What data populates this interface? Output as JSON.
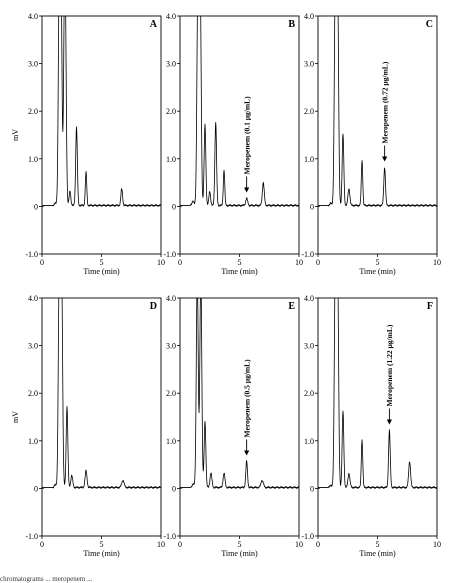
{
  "figure": {
    "caption_fragment": "chromatograms ... meropenem ..."
  },
  "chart_data": [
    {
      "type": "line",
      "panel_letter": "A",
      "xlabel": "Time (min)",
      "ylabel": "mV",
      "xlim": [
        0,
        10
      ],
      "ylim": [
        -1.0,
        4.0
      ],
      "x_ticks": [
        "0",
        "5",
        "10"
      ],
      "y_ticks": [
        "-1.0",
        "0",
        "1.0",
        "2.0",
        "3.0",
        "4.0"
      ],
      "baseline": 0.02,
      "peaks": [
        [
          1.1,
          0.05,
          0.08
        ],
        [
          1.45,
          4.5,
          0.08
        ],
        [
          1.6,
          4.5,
          0.08
        ],
        [
          1.9,
          4.5,
          0.08
        ],
        [
          2.0,
          1.7,
          0.07
        ],
        [
          2.35,
          0.3,
          0.07
        ],
        [
          2.9,
          1.65,
          0.07
        ],
        [
          3.7,
          0.7,
          0.06
        ],
        [
          6.7,
          0.35,
          0.07
        ]
      ],
      "annotation": null
    },
    {
      "type": "line",
      "panel_letter": "B",
      "xlabel": "Time (min)",
      "ylabel": "",
      "xlim": [
        0,
        10
      ],
      "ylim": [
        -1.0,
        4.0
      ],
      "x_ticks": [
        "0",
        "5",
        "10"
      ],
      "y_ticks": [
        "-1.0",
        "0",
        "1.0",
        "2.0",
        "3.0",
        "4.0"
      ],
      "baseline": 0.02,
      "peaks": [
        [
          1.1,
          0.1,
          0.08
        ],
        [
          1.5,
          4.5,
          0.08
        ],
        [
          1.7,
          4.5,
          0.08
        ],
        [
          2.1,
          1.7,
          0.07
        ],
        [
          2.5,
          0.3,
          0.07
        ],
        [
          3.0,
          1.75,
          0.07
        ],
        [
          3.7,
          0.75,
          0.06
        ],
        [
          5.6,
          0.15,
          0.08
        ],
        [
          7.0,
          0.48,
          0.08
        ]
      ],
      "annotation": {
        "label": "Meropenem (0.1 µg/mL)",
        "x": 5.6,
        "y": 0.25
      }
    },
    {
      "type": "line",
      "panel_letter": "C",
      "xlabel": "Time (min)",
      "ylabel": "",
      "xlim": [
        0,
        10
      ],
      "ylim": [
        -1.0,
        4.0
      ],
      "x_ticks": [
        "0",
        "5",
        "10"
      ],
      "y_ticks": [
        "-1.0",
        "0",
        "1.0",
        "2.0",
        "3.0",
        "4.0"
      ],
      "baseline": 0.02,
      "peaks": [
        [
          1.1,
          0.05,
          0.08
        ],
        [
          1.45,
          4.5,
          0.08
        ],
        [
          1.65,
          4.5,
          0.08
        ],
        [
          2.1,
          1.5,
          0.07
        ],
        [
          2.6,
          0.35,
          0.08
        ],
        [
          3.7,
          0.95,
          0.06
        ],
        [
          5.6,
          0.8,
          0.07
        ]
      ],
      "annotation": {
        "label": "Meropenem (0.72 µg/mL)",
        "x": 5.6,
        "y": 0.9
      }
    },
    {
      "type": "line",
      "panel_letter": "D",
      "xlabel": "Time (min)",
      "ylabel": "mV",
      "xlim": [
        0,
        10
      ],
      "ylim": [
        -1.0,
        4.0
      ],
      "x_ticks": [
        "0",
        "5",
        "10"
      ],
      "y_ticks": [
        "-1.0",
        "0",
        "1.0",
        "2.0",
        "3.0",
        "4.0"
      ],
      "baseline": 0.02,
      "peaks": [
        [
          1.1,
          0.05,
          0.08
        ],
        [
          1.45,
          4.5,
          0.08
        ],
        [
          1.65,
          4.5,
          0.08
        ],
        [
          2.1,
          1.7,
          0.07
        ],
        [
          2.5,
          0.25,
          0.08
        ],
        [
          3.7,
          0.35,
          0.08
        ],
        [
          6.8,
          0.15,
          0.1
        ]
      ],
      "annotation": null
    },
    {
      "type": "line",
      "panel_letter": "E",
      "xlabel": "Time (min)",
      "ylabel": "",
      "xlim": [
        0,
        10
      ],
      "ylim": [
        -1.0,
        4.0
      ],
      "x_ticks": [
        "0",
        "5",
        "10"
      ],
      "y_ticks": [
        "-1.0",
        "0",
        "1.0",
        "2.0",
        "3.0",
        "4.0"
      ],
      "baseline": 0.02,
      "peaks": [
        [
          1.1,
          0.08,
          0.08
        ],
        [
          1.45,
          4.5,
          0.08
        ],
        [
          1.75,
          4.5,
          0.08
        ],
        [
          2.1,
          1.4,
          0.07
        ],
        [
          2.6,
          0.3,
          0.08
        ],
        [
          3.7,
          0.3,
          0.08
        ],
        [
          5.6,
          0.55,
          0.07
        ],
        [
          6.9,
          0.15,
          0.1
        ]
      ],
      "annotation": {
        "label": "Meropenem (0.5 µg/mL)",
        "x": 5.6,
        "y": 0.65
      }
    },
    {
      "type": "line",
      "panel_letter": "F",
      "xlabel": "Time (min)",
      "ylabel": "",
      "xlim": [
        0,
        10
      ],
      "ylim": [
        -1.0,
        4.0
      ],
      "x_ticks": [
        "0",
        "5",
        "10"
      ],
      "y_ticks": [
        "-1.0",
        "0",
        "1.0",
        "2.0",
        "3.0",
        "4.0"
      ],
      "baseline": 0.02,
      "peaks": [
        [
          1.1,
          0.05,
          0.08
        ],
        [
          1.45,
          4.5,
          0.08
        ],
        [
          1.65,
          4.5,
          0.08
        ],
        [
          2.1,
          1.6,
          0.07
        ],
        [
          2.6,
          0.3,
          0.08
        ],
        [
          3.7,
          1.0,
          0.06
        ],
        [
          6.0,
          1.2,
          0.07
        ],
        [
          7.7,
          0.55,
          0.08
        ]
      ],
      "annotation": {
        "label": "Meropenem (1.22 µg/mL)",
        "x": 6.0,
        "y": 1.3
      }
    }
  ]
}
